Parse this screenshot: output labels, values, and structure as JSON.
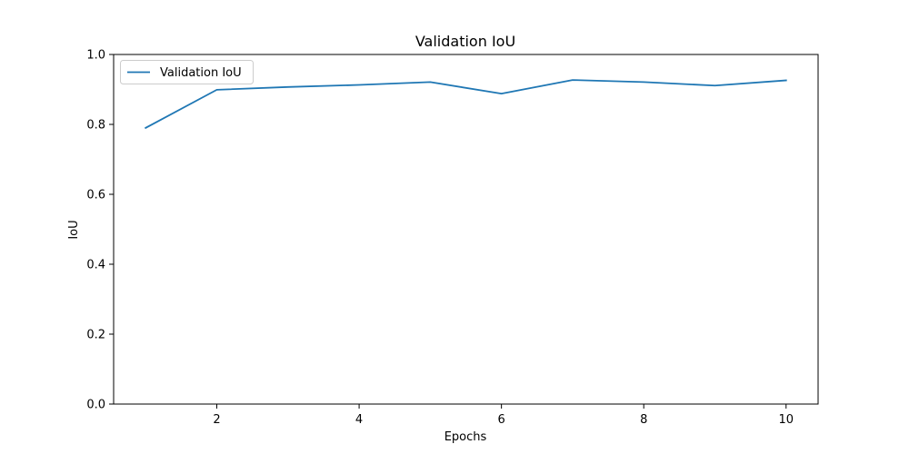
{
  "chart_data": {
    "type": "line",
    "title": "Validation IoU",
    "xlabel": "Epochs",
    "ylabel": "IoU",
    "xlim": [
      0.55,
      10.45
    ],
    "ylim": [
      0.0,
      1.0
    ],
    "xticks": [
      2,
      4,
      6,
      8,
      10
    ],
    "yticks": [
      0.0,
      0.2,
      0.4,
      0.6,
      0.8,
      1.0
    ],
    "xtick_labels": [
      "2",
      "4",
      "6",
      "8",
      "10"
    ],
    "ytick_labels": [
      "0.0",
      "0.2",
      "0.4",
      "0.6",
      "0.8",
      "1.0"
    ],
    "grid": false,
    "legend_position": "top-left",
    "x": [
      1,
      2,
      3,
      4,
      5,
      6,
      7,
      8,
      9,
      10
    ],
    "series": [
      {
        "name": "Validation IoU",
        "color": "#1f77b4",
        "values": [
          0.79,
          0.899,
          0.907,
          0.913,
          0.921,
          0.888,
          0.927,
          0.921,
          0.911,
          0.926
        ]
      }
    ]
  }
}
